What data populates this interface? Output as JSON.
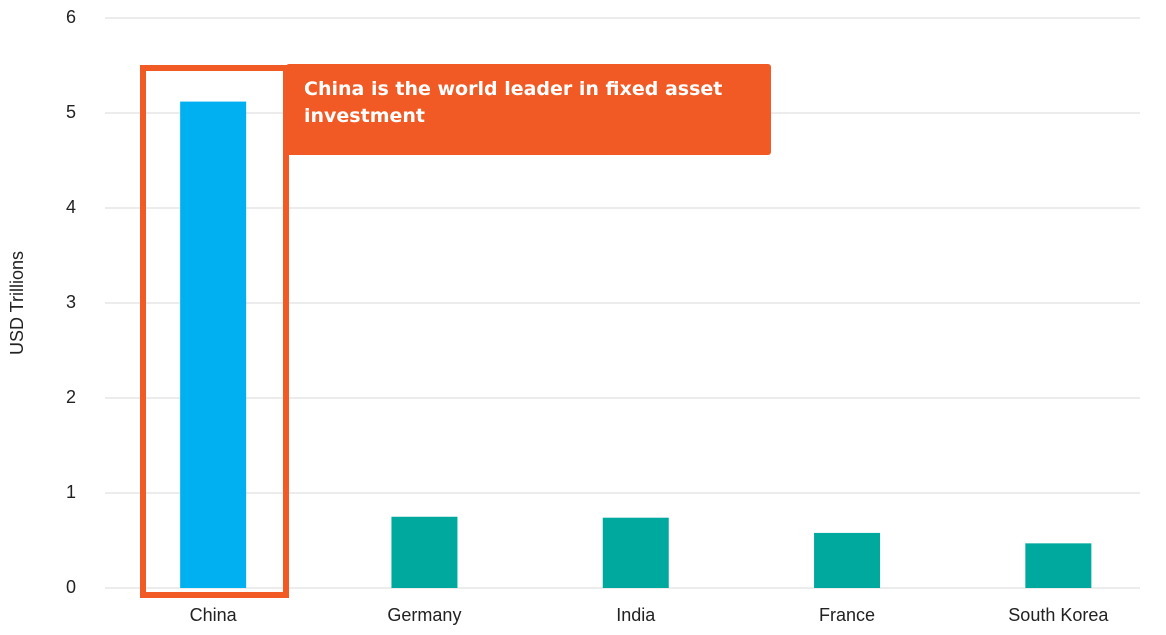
{
  "chart_data": {
    "type": "bar",
    "y_label": "USD Trillions",
    "categories": [
      "China",
      "Germany",
      "India",
      "France",
      "South Korea"
    ],
    "values": [
      5.12,
      0.75,
      0.74,
      0.58,
      0.47
    ],
    "colors": [
      "#00b0f0",
      "#00a99d",
      "#00a99d",
      "#00a99d",
      "#00a99d"
    ],
    "ylim": [
      0,
      6
    ],
    "yticks": [
      0,
      1,
      2,
      3,
      4,
      5,
      6
    ],
    "grid": true,
    "annotation": "China is the world leader in fixed asset investment",
    "highlight_color": "#f15a24"
  }
}
